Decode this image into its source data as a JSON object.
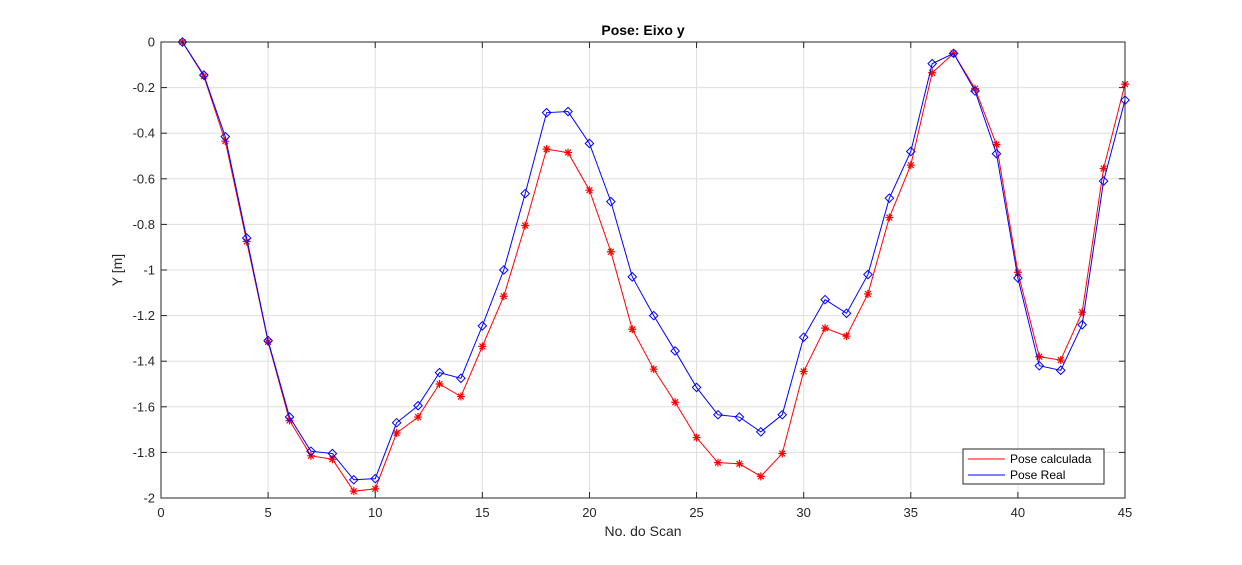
{
  "chart_data": {
    "type": "line",
    "title": "Pose: Eixo y",
    "xlabel": "No. do Scan",
    "ylabel": "Y [m]",
    "xlim": [
      0,
      45
    ],
    "ylim": [
      -2,
      0
    ],
    "xticks": [
      0,
      5,
      10,
      15,
      20,
      25,
      30,
      35,
      40,
      45
    ],
    "xtick_labels": [
      "0",
      "5",
      "10",
      "15",
      "20",
      "25",
      "30",
      "35",
      "40",
      "45"
    ],
    "yticks": [
      0,
      -0.2,
      -0.4,
      -0.6,
      -0.8,
      -1,
      -1.2,
      -1.4,
      -1.6,
      -1.8,
      -2
    ],
    "ytick_labels": [
      "0",
      "-0.2",
      "-0.4",
      "-0.6",
      "-0.8",
      "-1",
      "-1.2",
      "-1.4",
      "-1.6",
      "-1.8",
      "-2"
    ],
    "grid": true,
    "legend_position": "bottom-right",
    "x": [
      1,
      2,
      3,
      4,
      5,
      6,
      7,
      8,
      9,
      10,
      11,
      12,
      13,
      14,
      15,
      16,
      17,
      18,
      19,
      20,
      21,
      22,
      23,
      24,
      25,
      26,
      27,
      28,
      29,
      30,
      31,
      32,
      33,
      34,
      35,
      36,
      37,
      38,
      39,
      40,
      41,
      42,
      43,
      44,
      45
    ],
    "series": [
      {
        "name": "Pose calculada",
        "color": "#ff0000",
        "marker": "asterisk",
        "values": [
          0,
          -0.15,
          -0.435,
          -0.875,
          -1.315,
          -1.66,
          -1.815,
          -1.83,
          -1.97,
          -1.96,
          -1.715,
          -1.645,
          -1.5,
          -1.555,
          -1.335,
          -1.115,
          -0.805,
          -0.47,
          -0.485,
          -0.65,
          -0.92,
          -1.26,
          -1.435,
          -1.58,
          -1.735,
          -1.845,
          -1.85,
          -1.905,
          -1.805,
          -1.445,
          -1.255,
          -1.29,
          -1.105,
          -0.77,
          -0.54,
          -0.135,
          -0.05,
          -0.205,
          -0.45,
          -1.01,
          -1.38,
          -1.395,
          -1.185,
          -0.555,
          -0.185
        ]
      },
      {
        "name": "Pose Real",
        "color": "#0000ff",
        "marker": "diamond",
        "values": [
          0,
          -0.145,
          -0.415,
          -0.86,
          -1.31,
          -1.645,
          -1.795,
          -1.805,
          -1.92,
          -1.915,
          -1.67,
          -1.595,
          -1.45,
          -1.475,
          -1.245,
          -1.0,
          -0.665,
          -0.31,
          -0.305,
          -0.445,
          -0.7,
          -1.03,
          -1.2,
          -1.355,
          -1.515,
          -1.635,
          -1.645,
          -1.71,
          -1.635,
          -1.295,
          -1.13,
          -1.19,
          -1.02,
          -0.685,
          -0.48,
          -0.095,
          -0.05,
          -0.215,
          -0.49,
          -1.035,
          -1.42,
          -1.44,
          -1.24,
          -0.61,
          -0.255
        ]
      }
    ]
  }
}
